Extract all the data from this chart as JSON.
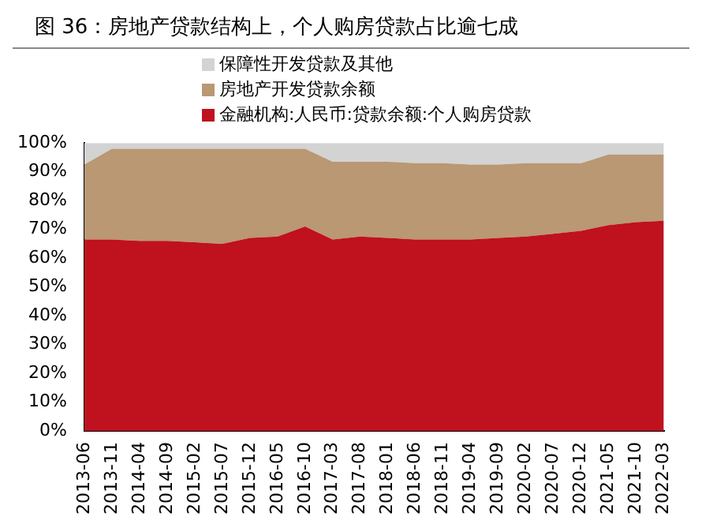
{
  "chart_data": {
    "type": "area",
    "title": "图 36：房地产贷款结构上，个人购房贷款占比逾七成",
    "categories": [
      "2013-06",
      "2013-11",
      "2014-04",
      "2014-09",
      "2015-02",
      "2015-07",
      "2015-12",
      "2016-05",
      "2016-10",
      "2017-03",
      "2017-08",
      "2018-01",
      "2018-06",
      "2018-11",
      "2019-04",
      "2019-09",
      "2020-02",
      "2020-07",
      "2020-12",
      "2021-05",
      "2021-10",
      "2022-03"
    ],
    "stacked": true,
    "series": [
      {
        "name": "金融机构:人民币:贷款余额:个人购房贷款",
        "color": "#c0111f",
        "values": [
          66.5,
          66.5,
          66,
          66,
          65.5,
          65,
          67,
          67.5,
          71,
          66.5,
          67.5,
          67,
          66.5,
          66.5,
          66.5,
          67,
          67.5,
          68.5,
          69.5,
          71.5,
          72.5,
          73
        ]
      },
      {
        "name": "房地产开发贷款余额",
        "color": "#b99873",
        "values": [
          26,
          31.5,
          32,
          32,
          32.5,
          33,
          31,
          30.5,
          27,
          27,
          26,
          26.5,
          26.5,
          26.5,
          26,
          25.5,
          25.5,
          24.5,
          23.5,
          24.5,
          23.5,
          23
        ]
      },
      {
        "name": "保障性开发贷款及其他",
        "color": "#d3d3d3",
        "values": [
          7.5,
          2,
          2,
          2,
          2,
          2,
          2,
          2,
          2,
          6.5,
          6.5,
          6.5,
          7,
          7,
          7.5,
          7.5,
          7,
          7,
          7,
          4,
          4,
          4
        ]
      }
    ],
    "ylim": [
      0,
      100
    ],
    "yticks": [
      {
        "value": 0,
        "label": "0%"
      },
      {
        "value": 10,
        "label": "10%"
      },
      {
        "value": 20,
        "label": "20%"
      },
      {
        "value": 30,
        "label": "30%"
      },
      {
        "value": 40,
        "label": "40%"
      },
      {
        "value": 50,
        "label": "50%"
      },
      {
        "value": 60,
        "label": "60%"
      },
      {
        "value": 70,
        "label": "70%"
      },
      {
        "value": 80,
        "label": "80%"
      },
      {
        "value": 90,
        "label": "90%"
      },
      {
        "value": 100,
        "label": "100%"
      }
    ],
    "grid": false,
    "legend": "top"
  }
}
